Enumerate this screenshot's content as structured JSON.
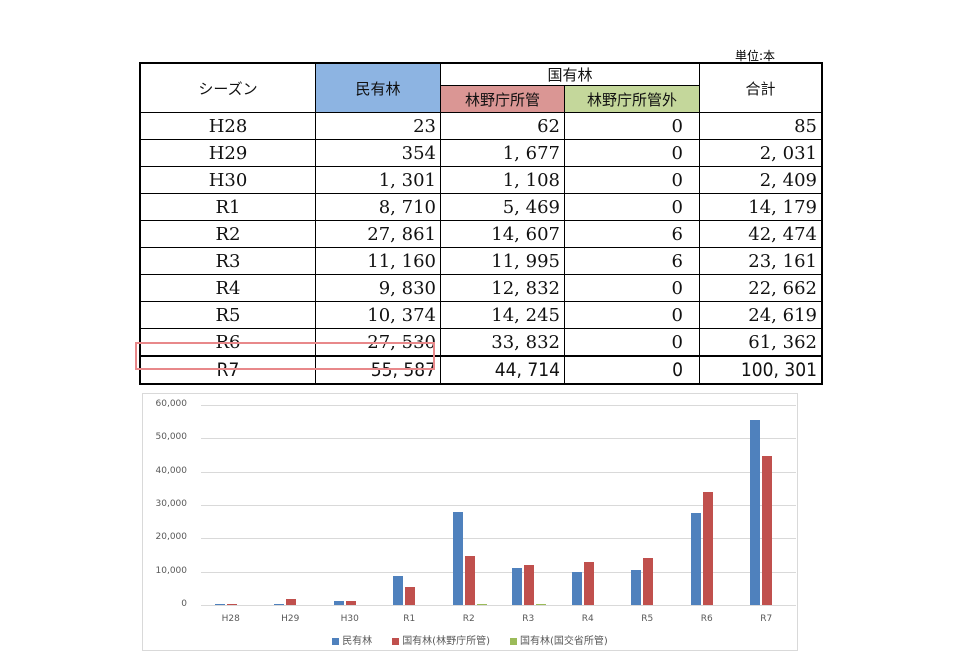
{
  "unit_label": "単位:本",
  "table": {
    "headers": {
      "season": "シーズン",
      "private": "民有林",
      "national_group": "国有林",
      "forestry_agency": "林野庁所管",
      "non_forestry_agency": "林野庁所管外",
      "total": "合計"
    },
    "header_colors": {
      "private": "#8db4e2",
      "forestry_agency": "#da9694",
      "non_forestry_agency": "#c4d79b"
    },
    "rows": [
      {
        "season": "H28",
        "private": "23",
        "forestry": "62",
        "other": "0",
        "total": "85"
      },
      {
        "season": "H29",
        "private": "354",
        "forestry": "1, 677",
        "other": "0",
        "total": "2, 031"
      },
      {
        "season": "H30",
        "private": "1, 301",
        "forestry": "1, 108",
        "other": "0",
        "total": "2, 409"
      },
      {
        "season": "R1",
        "private": "8, 710",
        "forestry": "5, 469",
        "other": "0",
        "total": "14, 179"
      },
      {
        "season": "R2",
        "private": "27, 861",
        "forestry": "14, 607",
        "other": "6",
        "total": "42, 474"
      },
      {
        "season": "R3",
        "private": "11, 160",
        "forestry": "11, 995",
        "other": "6",
        "total": "23, 161"
      },
      {
        "season": "R4",
        "private": "9, 830",
        "forestry": "12, 832",
        "other": "0",
        "total": "22, 662"
      },
      {
        "season": "R5",
        "private": "10, 374",
        "forestry": "14, 245",
        "other": "0",
        "total": "24, 619"
      },
      {
        "season": "R6",
        "private": "27, 530",
        "forestry": "33, 832",
        "other": "0",
        "total": "61, 362"
      },
      {
        "season": "R7",
        "private": "55, 587",
        "forestry": "44, 714",
        "other": "0",
        "total": "100, 301"
      }
    ]
  },
  "chart_data": {
    "type": "bar",
    "title": "",
    "xlabel": "",
    "ylabel": "",
    "ylim": [
      0,
      60000
    ],
    "yticks": [
      "60,000",
      "50,000",
      "40,000",
      "30,000",
      "20,000",
      "10,000",
      "0"
    ],
    "grid": true,
    "legend_position": "bottom",
    "categories": [
      "H28",
      "H29",
      "H30",
      "R1",
      "R2",
      "R3",
      "R4",
      "R5",
      "R6",
      "R7"
    ],
    "series": [
      {
        "name": "民有林",
        "color": "#4f81bd",
        "values": [
          23,
          354,
          1301,
          8710,
          27861,
          11160,
          9830,
          10374,
          27530,
          55587
        ]
      },
      {
        "name": "国有林(林野庁所管)",
        "color": "#c0504d",
        "values": [
          62,
          1677,
          1108,
          5469,
          14607,
          11995,
          12832,
          14245,
          33832,
          44714
        ]
      },
      {
        "name": "国有林(国交省所管)",
        "color": "#9bbb59",
        "values": [
          0,
          0,
          0,
          0,
          6,
          6,
          0,
          0,
          0,
          0
        ]
      }
    ]
  }
}
